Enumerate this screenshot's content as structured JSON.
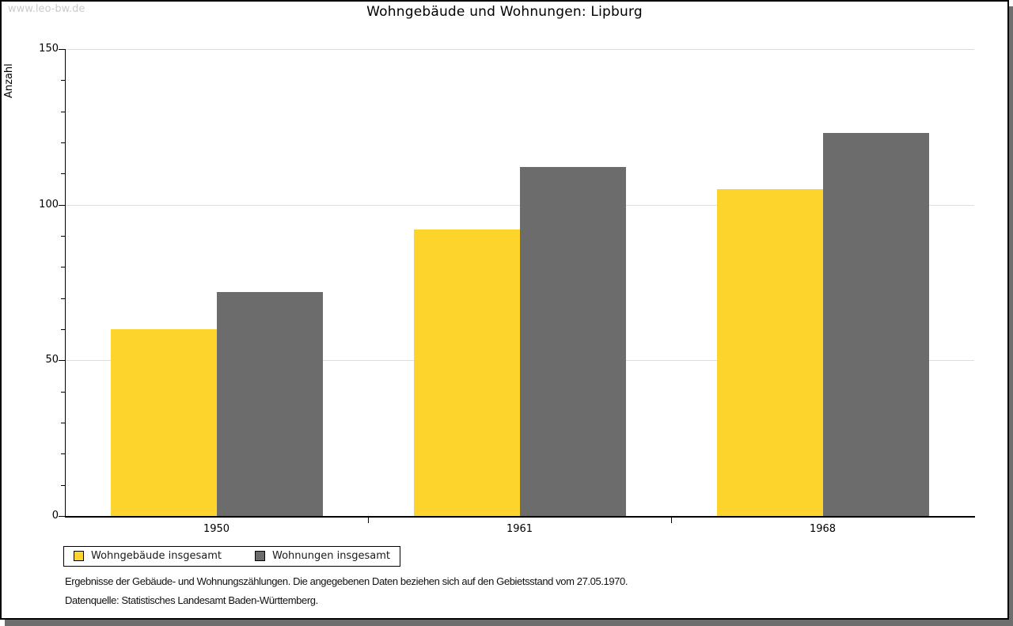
{
  "watermark": "www.leo-bw.de",
  "title": "Wohngebäude und Wohnungen: Lipburg",
  "chart_data": {
    "type": "bar",
    "title": "Wohngebäude und Wohnungen: Lipburg",
    "xlabel": "",
    "ylabel": "Anzahl",
    "categories": [
      "1950",
      "1961",
      "1968"
    ],
    "series": [
      {
        "name": "Wohngebäude insgesamt",
        "color": "#FCD42C",
        "values": [
          60,
          92,
          105
        ]
      },
      {
        "name": "Wohnungen insgesamt",
        "color": "#6C6C6C",
        "values": [
          72,
          112,
          123
        ]
      }
    ],
    "ylim": [
      0,
      150
    ],
    "yticks": [
      0,
      50,
      100,
      150
    ],
    "minor_tick_step": 10,
    "grid": true,
    "legend_position": "bottom-left"
  },
  "footer": {
    "line1": "Ergebnisse der Gebäude- und Wohnungszählungen. Die angegebenen Daten beziehen sich auf den Gebietsstand vom 27.05.1970.",
    "line2": "Datenquelle: Statistisches Landesamt Baden-Württemberg."
  },
  "colors": {
    "bar_yellow": "#FCD42C",
    "bar_gray": "#6C6C6C",
    "gridline": "#DDDDDD",
    "watermark_text": "#CBCBCB",
    "frame_shadow": "#6E6E6E"
  }
}
